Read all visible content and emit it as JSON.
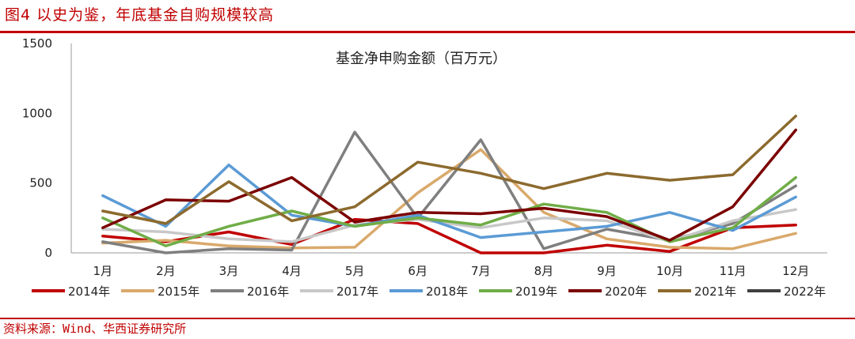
{
  "figure_title": "图4 以史为鉴，年底基金自购规模较高",
  "source": "资料来源：Wind、华西证券研究所",
  "chart_data": {
    "type": "line",
    "title": "基金净申购金额（百万元）",
    "xlabel": "",
    "ylabel": "",
    "ylim": [
      0,
      1500
    ],
    "yticks": [
      0,
      500,
      1000,
      1500
    ],
    "grid": false,
    "legend_position": "bottom",
    "categories": [
      "1月",
      "2月",
      "3月",
      "4月",
      "5月",
      "6月",
      "7月",
      "8月",
      "9月",
      "10月",
      "11月",
      "12月"
    ],
    "series": [
      {
        "name": "2014年",
        "color": "#c00000",
        "values": [
          120,
          80,
          150,
          60,
          240,
          210,
          0,
          0,
          55,
          10,
          180,
          200
        ]
      },
      {
        "name": "2015年",
        "color": "#d9a96b",
        "values": [
          70,
          90,
          50,
          35,
          40,
          430,
          740,
          290,
          100,
          40,
          30,
          140
        ]
      },
      {
        "name": "2016年",
        "color": "#7f7f7f",
        "values": [
          80,
          0,
          30,
          20,
          865,
          250,
          810,
          30,
          170,
          90,
          210,
          480
        ]
      },
      {
        "name": "2017年",
        "color": "#c8c8c8",
        "values": [
          170,
          150,
          100,
          80,
          200,
          240,
          180,
          250,
          230,
          80,
          230,
          310
        ]
      },
      {
        "name": "2018年",
        "color": "#5b9bd5",
        "values": [
          410,
          190,
          630,
          270,
          190,
          270,
          110,
          150,
          190,
          290,
          160,
          400
        ]
      },
      {
        "name": "2019年",
        "color": "#70ad47",
        "values": [
          250,
          50,
          190,
          300,
          190,
          250,
          200,
          350,
          290,
          80,
          180,
          540
        ]
      },
      {
        "name": "2020年",
        "color": "#7b0000",
        "values": [
          180,
          380,
          370,
          540,
          220,
          290,
          280,
          320,
          260,
          90,
          330,
          880
        ]
      },
      {
        "name": "2021年",
        "color": "#8c6a2e",
        "values": [
          300,
          210,
          510,
          230,
          330,
          650,
          570,
          460,
          570,
          520,
          560,
          980
        ]
      },
      {
        "name": "2022年",
        "color": "#404040",
        "values": [
          null,
          null,
          null,
          null,
          null,
          null,
          null,
          null,
          null,
          null,
          null,
          null
        ]
      }
    ]
  }
}
